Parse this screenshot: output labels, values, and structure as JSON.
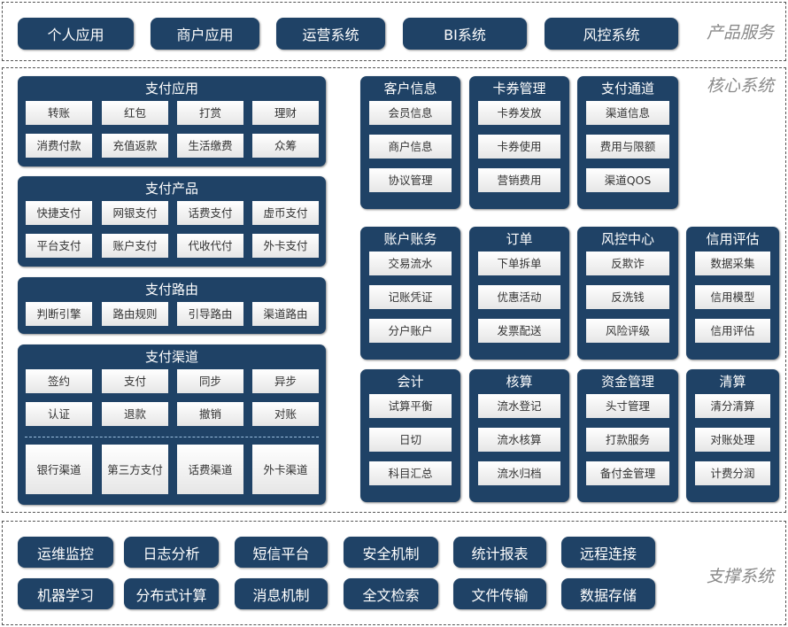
{
  "colors": {
    "box": "#1f4266",
    "cell": "#f2f2f2",
    "label": "#8a8a8a"
  },
  "product": {
    "label": "产品服务",
    "buttons": [
      "个人应用",
      "商户应用",
      "运营系统",
      "BI系统",
      "风控系统"
    ]
  },
  "core": {
    "label": "核心系统",
    "left": [
      {
        "title": "支付应用",
        "rows": [
          [
            "转账",
            "红包",
            "打赏",
            "理财"
          ],
          [
            "消费付款",
            "充值返款",
            "生活缴费",
            "众筹"
          ]
        ]
      },
      {
        "title": "支付产品",
        "rows": [
          [
            "快捷支付",
            "网银支付",
            "话费支付",
            "虚币支付"
          ],
          [
            "平台支付",
            "账户支付",
            "代收代付",
            "外卡支付"
          ]
        ]
      },
      {
        "title": "支付路由",
        "rows": [
          [
            "判断引擎",
            "路由规则",
            "引导路由",
            "渠道路由"
          ]
        ]
      },
      {
        "title": "支付渠道",
        "rows": [
          [
            "签约",
            "支付",
            "同步",
            "异步"
          ],
          [
            "认证",
            "退款",
            "撤销",
            "对账"
          ]
        ],
        "channels": [
          "银行渠道",
          "第三方支付",
          "话费渠道",
          "外卡渠道"
        ]
      }
    ],
    "right": [
      [
        {
          "title": "客户信息",
          "items": [
            "会员信息",
            "商户信息",
            "协议管理"
          ]
        },
        {
          "title": "卡券管理",
          "items": [
            "卡券发放",
            "卡券使用",
            "营销费用"
          ]
        },
        {
          "title": "支付通道",
          "items": [
            "渠道信息",
            "费用与限额",
            "渠道QOS"
          ]
        }
      ],
      [
        {
          "title": "账户账务",
          "items": [
            "交易流水",
            "记账凭证",
            "分户账户"
          ]
        },
        {
          "title": "订单",
          "items": [
            "下单拆单",
            "优惠活动",
            "发票配送"
          ]
        },
        {
          "title": "风控中心",
          "items": [
            "反欺诈",
            "反洗钱",
            "风险评级"
          ]
        },
        {
          "title": "信用评估",
          "items": [
            "数据采集",
            "信用模型",
            "信用评估"
          ]
        }
      ],
      [
        {
          "title": "会计",
          "items": [
            "试算平衡",
            "日切",
            "科目汇总"
          ]
        },
        {
          "title": "核算",
          "items": [
            "流水登记",
            "流水核算",
            "流水归档"
          ]
        },
        {
          "title": "资金管理",
          "items": [
            "头寸管理",
            "打款服务",
            "备付金管理"
          ]
        },
        {
          "title": "清算",
          "items": [
            "清分清算",
            "对账处理",
            "计费分润"
          ]
        }
      ]
    ]
  },
  "support": {
    "label": "支撑系统",
    "rows": [
      [
        "运维监控",
        "日志分析",
        "短信平台",
        "安全机制",
        "统计报表",
        "远程连接"
      ],
      [
        "机器学习",
        "分布式计算",
        "消息机制",
        "全文检索",
        "文件传输",
        "数据存储"
      ]
    ]
  }
}
